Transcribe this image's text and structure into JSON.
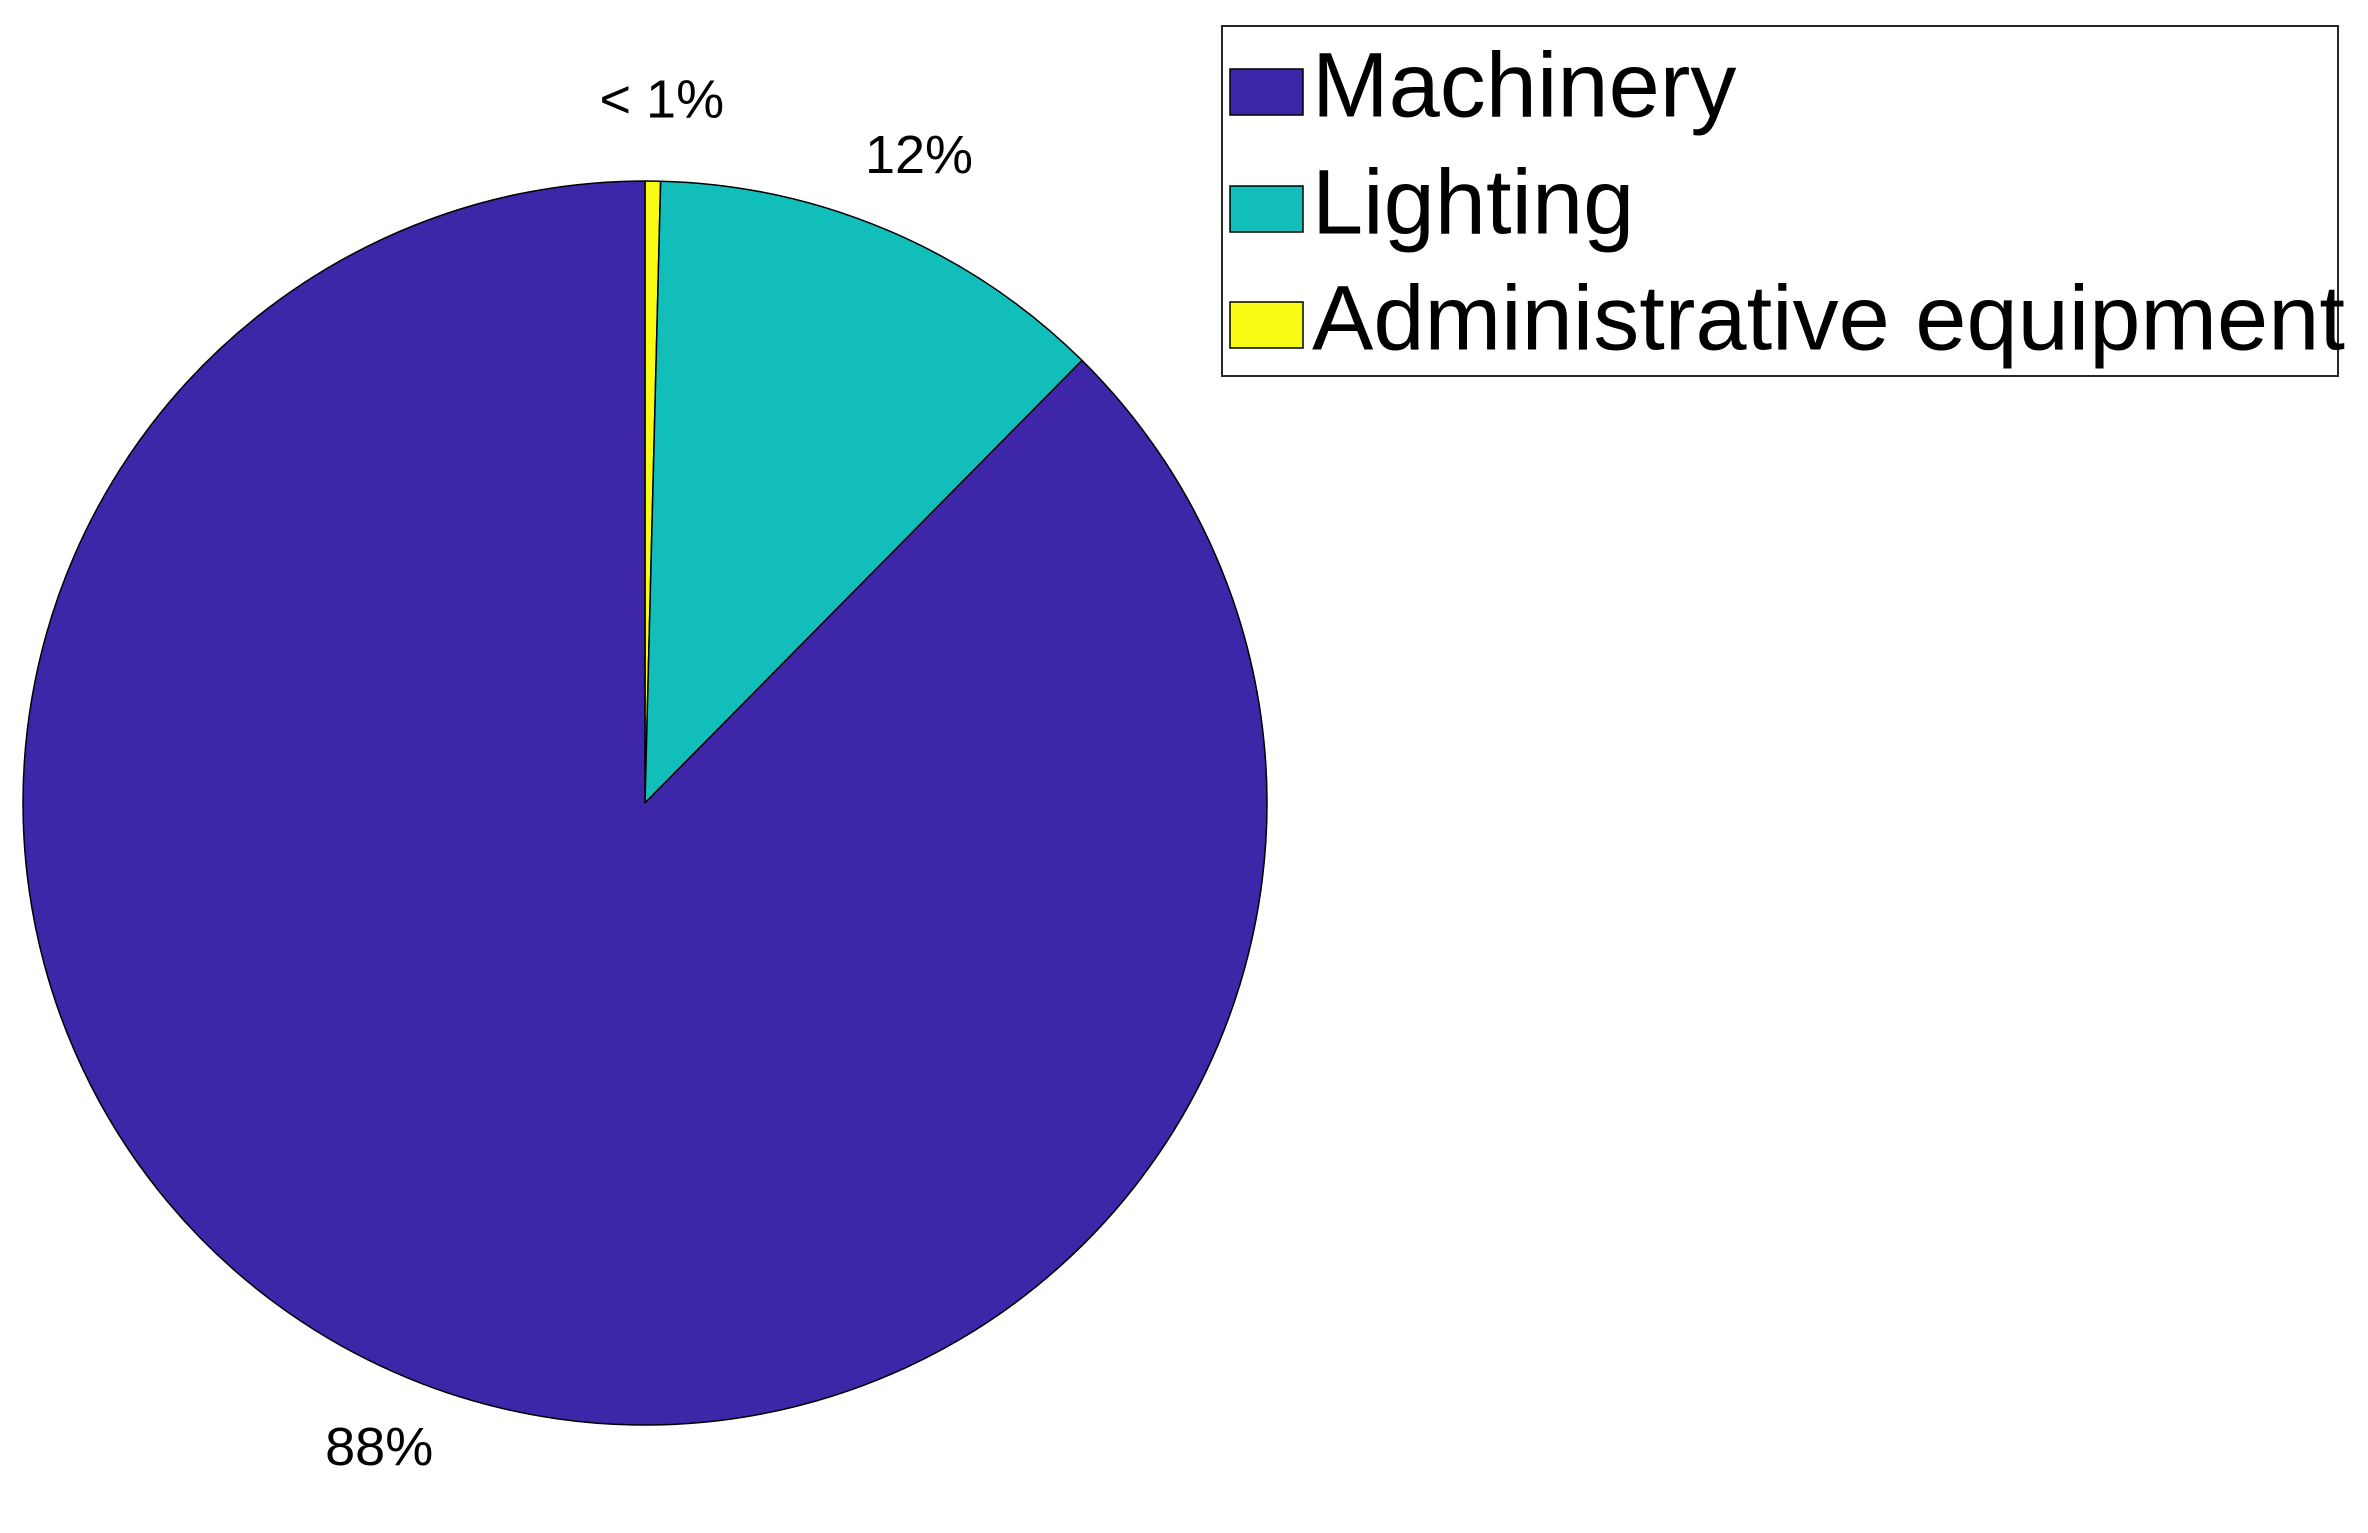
{
  "chart_data": {
    "type": "pie",
    "slices": [
      {
        "label": "Machinery",
        "value": 87.6,
        "display": "88%",
        "color": "#3e26a8"
      },
      {
        "label": "Lighting",
        "value": 12.0,
        "display": "12%",
        "color": "#12beb9"
      },
      {
        "label": "Administrative equipment",
        "value": 0.4,
        "display": "< 1%",
        "color": "#f9fb15"
      }
    ],
    "start_angle_deg": 90,
    "direction": "clockwise",
    "slice_order": [
      "Administrative equipment",
      "Lighting",
      "Machinery"
    ],
    "legend": {
      "placement": "top-right",
      "entries": [
        "Machinery",
        "Lighting",
        "Administrative equipment"
      ]
    },
    "title": "",
    "edge_color": "#000000"
  }
}
